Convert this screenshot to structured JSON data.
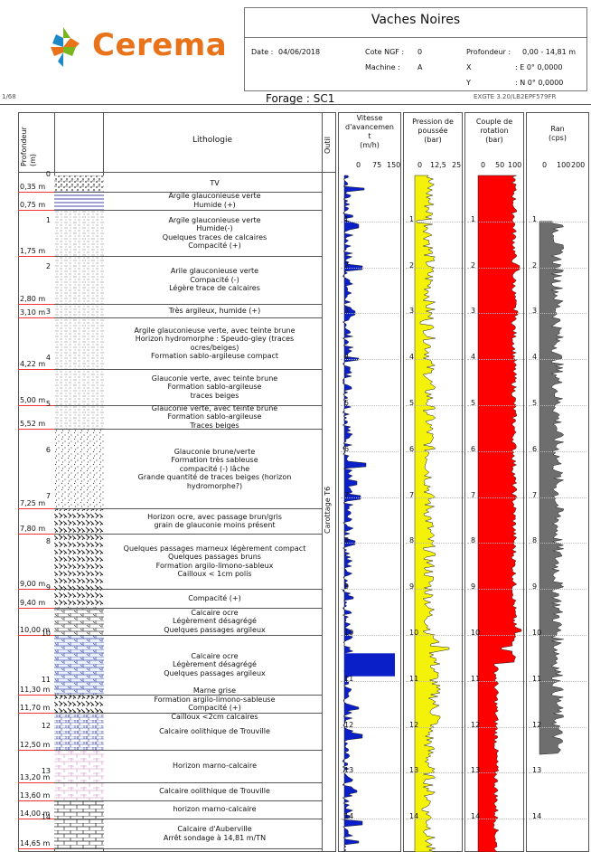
{
  "header": {
    "logo_text": "Cerema",
    "site_name": "Vaches Noires",
    "date_label": "Date :",
    "date_value": "04/06/2018",
    "cote_label": "Cote NGF :",
    "cote_value": "0",
    "machine_label": "Machine :",
    "machine_value": "A",
    "profondeur_label": "Profondeur :",
    "profondeur_value": "0,00 - 14,81 m",
    "x_label": "X",
    "x_value": ": E 0° 0,0000",
    "y_label": "Y",
    "y_value": ": N 0° 0,0000",
    "page_number": "1/68",
    "forage_title": "Forage : SC1",
    "software_ref": "EXGTE 3.20/LB2EPF579FR"
  },
  "columns": {
    "depth_header": "Profondeur (m)",
    "litho_header": "Lithologie",
    "outil_header": "Outil",
    "outil_value": "Carottage T6",
    "vitesse_header": [
      "Vitesse",
      "d'avancemen",
      "t",
      "(m/h)"
    ],
    "vitesse_scale": [
      "0",
      "75",
      "150"
    ],
    "pression_header": [
      "Pression de",
      "poussée",
      "(bar)"
    ],
    "pression_scale": [
      "0",
      "12,5",
      "25"
    ],
    "couple_header": [
      "Couple de",
      "rotation",
      "(bar)"
    ],
    "couple_scale": [
      "0",
      "50",
      "100"
    ],
    "ran_header": [
      "Ran",
      "(cps)"
    ],
    "ran_scale": [
      "0",
      "100",
      "200"
    ]
  },
  "depth_ticks": [
    "0",
    "1",
    "2",
    "3",
    "4",
    "5",
    "6",
    "7",
    "8",
    "9",
    "10",
    "11",
    "12",
    "13",
    "14"
  ],
  "layers": [
    {
      "top": 0.0,
      "bottom": 0.35,
      "label": "0,35 m",
      "pattern": "tv",
      "text": [
        "TV"
      ]
    },
    {
      "top": 0.35,
      "bottom": 0.75,
      "label": "0,75 m",
      "pattern": "lines",
      "text": [
        "Argile glauconieuse verte",
        "Humide (+)"
      ]
    },
    {
      "top": 0.75,
      "bottom": 1.75,
      "label": "1,75 m",
      "pattern": "clay",
      "text": [
        "Argile glauconieuse verte",
        "Humide(-)",
        "Quelques traces de calcaires",
        "Compacité (+)"
      ]
    },
    {
      "top": 1.75,
      "bottom": 2.8,
      "label": "2,80 m",
      "pattern": "clay",
      "text": [
        "Arile glauconieuse verte",
        "Compacité (-)",
        "Légère trace de calcaires"
      ]
    },
    {
      "top": 2.8,
      "bottom": 3.1,
      "label": "3,10 m",
      "pattern": "clay",
      "text": [
        "Très argileux, humide (+)"
      ]
    },
    {
      "top": 3.1,
      "bottom": 4.22,
      "label": "4,22 m",
      "pattern": "clay",
      "text": [
        "Argile glauconieuse verte, avec teinte brune",
        "Horizon hydromorphe : Speudo-gley (traces",
        "ocres/beiges)",
        "Formation sablo-argileuse compact"
      ]
    },
    {
      "top": 4.22,
      "bottom": 5.0,
      "label": "5,00 m",
      "pattern": "clay",
      "text": [
        "Glauconie verte, avec teinte brune",
        "Formation sablo-argileuse",
        "traces beiges"
      ]
    },
    {
      "top": 5.0,
      "bottom": 5.52,
      "label": "5,52 m",
      "pattern": "clay",
      "text": [
        "Glauconie verte, avec teinte brune",
        "Formation sablo-argileuse",
        "Traces beiges"
      ]
    },
    {
      "top": 5.52,
      "bottom": 7.25,
      "label": "7,25 m",
      "pattern": "sand",
      "text": [
        "Glauconie brune/verte",
        "Formation très sableuse",
        "compacité (-) lâche",
        "Grande quantité de traces beiges (horizon",
        "hydromorphe?)"
      ]
    },
    {
      "top": 7.25,
      "bottom": 7.8,
      "label": "7,80 m",
      "pattern": "marl",
      "text": [
        "Horizon ocre, avec passage brun/gris",
        "grain de glauconie moins présent"
      ]
    },
    {
      "top": 7.8,
      "bottom": 9.0,
      "label": "9,00 m",
      "pattern": "marl",
      "text": [
        "Quelques passages marneux légèrement compact",
        "Quelques passages bruns",
        "Formation argilo-limono-sableux",
        "Cailloux < 1cm polis"
      ]
    },
    {
      "top": 9.0,
      "bottom": 9.4,
      "label": "9,40 m",
      "pattern": "marl",
      "text": [
        "Compacité (+)"
      ]
    },
    {
      "top": 9.4,
      "bottom": 10.0,
      "label": "10,00 m",
      "pattern": "limestone",
      "text": [
        "Calcaire ocre",
        "Légèrement désagrégé",
        "Quelques passages argileux"
      ]
    },
    {
      "top": 10.0,
      "bottom": 11.3,
      "label": "11,30 m",
      "pattern": "limestone-blue",
      "text": [
        "Calcaire ocre",
        "Légèrement désagrégé",
        "Quelques passages argileux"
      ]
    },
    {
      "top": 11.3,
      "bottom": 11.7,
      "label": "11,70 m",
      "pattern": "marl",
      "text": [
        "Marne grise",
        "Formation argilo-limono-sableuse",
        "Compacité (+)",
        "Cailloux <2cm calcaires"
      ]
    },
    {
      "top": 11.7,
      "bottom": 12.5,
      "label": "12,50 m",
      "pattern": "oolite",
      "text": [
        "Calcaire oolithique de Trouville"
      ]
    },
    {
      "top": 12.5,
      "bottom": 13.2,
      "label": "13,20 m",
      "pattern": "pink",
      "text": [
        "Horizon marno-calcaire"
      ]
    },
    {
      "top": 13.2,
      "bottom": 13.6,
      "label": "13,60 m",
      "pattern": "pink",
      "text": [
        "Calcaire oolithique de Trouville"
      ]
    },
    {
      "top": 13.6,
      "bottom": 14.0,
      "label": "14,00 m",
      "pattern": "brick",
      "text": [
        "horizon marno-calcaire"
      ]
    },
    {
      "top": 14.0,
      "bottom": 14.65,
      "label": "14,65 m",
      "pattern": "brick",
      "text": [
        "Calcaire d'Auberville",
        "Arrêt sondage à 14,81 m/TN"
      ]
    }
  ],
  "colors": {
    "logo_orange": "#e8731a",
    "logo_green": "#7ab51d",
    "logo_blue": "#1d88c8",
    "vitesse": "#0b1fc9",
    "pression": "#f5f20a",
    "couple": "#ff0000",
    "ran": "#6e6e6e",
    "depth_mark": "#e33"
  }
}
